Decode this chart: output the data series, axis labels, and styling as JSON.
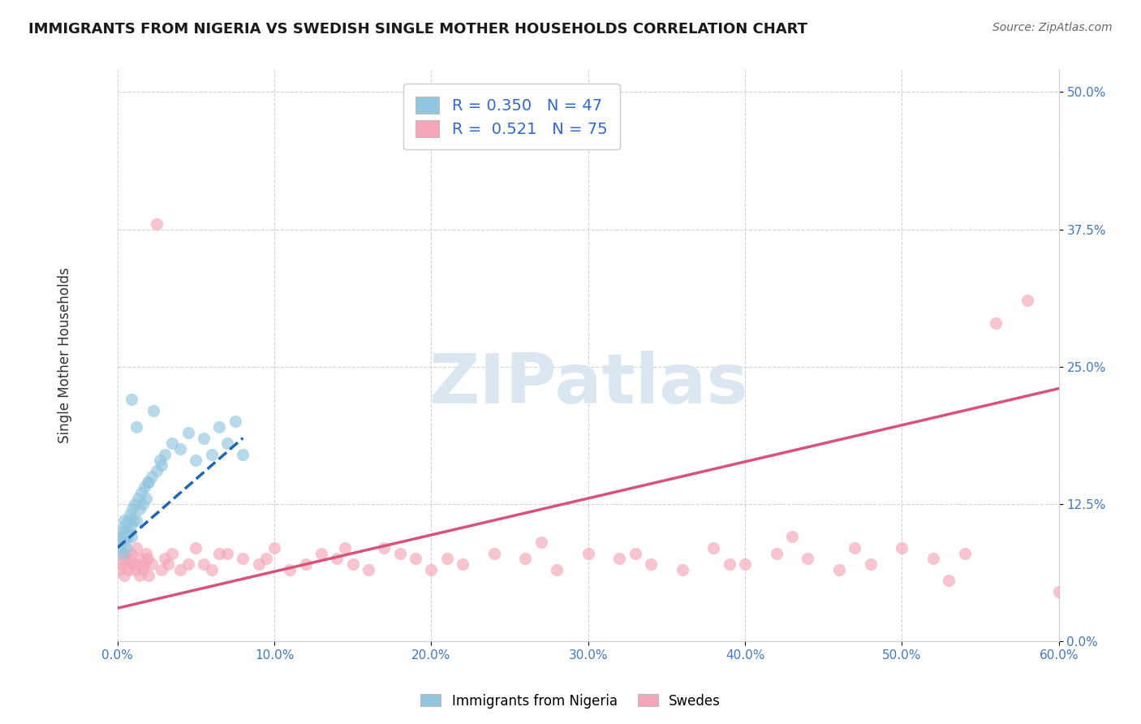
{
  "title": "IMMIGRANTS FROM NIGERIA VS SWEDISH SINGLE MOTHER HOUSEHOLDS CORRELATION CHART",
  "source": "Source: ZipAtlas.com",
  "xlim": [
    0.0,
    60.0
  ],
  "ylim": [
    0.0,
    52.0
  ],
  "ylabel": "Single Mother Households",
  "legend_label1": "Immigrants from Nigeria",
  "legend_label2": "Swedes",
  "legend_R1": "0.350",
  "legend_N1": "47",
  "legend_R2": "0.521",
  "legend_N2": "75",
  "color_blue": "#92c5de",
  "color_blue_fill": "#aed4e8",
  "color_pink": "#f4a6b8",
  "color_pink_fill": "#f9c6d0",
  "color_blue_line": "#2166ac",
  "color_pink_line": "#d6537a",
  "background_color": "#ffffff",
  "grid_color": "#cccccc",
  "watermark": "ZIPatlas",
  "watermark_color": "#dce6f0",
  "blue_scatter_x": [
    0.1,
    0.15,
    0.2,
    0.25,
    0.3,
    0.35,
    0.4,
    0.45,
    0.5,
    0.55,
    0.6,
    0.65,
    0.7,
    0.75,
    0.8,
    0.85,
    0.9,
    0.95,
    1.0,
    1.1,
    1.2,
    1.3,
    1.4,
    1.5,
    1.6,
    1.7,
    1.8,
    2.0,
    2.2,
    2.5,
    2.8,
    3.0,
    3.5,
    4.0,
    4.5,
    5.0,
    5.5,
    6.0,
    6.5,
    7.0,
    7.5,
    8.0,
    2.3,
    1.9,
    0.9,
    1.2,
    2.7
  ],
  "blue_scatter_y": [
    8.5,
    9.0,
    9.5,
    10.0,
    8.0,
    9.5,
    10.5,
    11.0,
    9.0,
    8.5,
    10.0,
    9.5,
    11.0,
    10.0,
    11.5,
    10.5,
    9.5,
    12.0,
    11.0,
    12.5,
    11.0,
    13.0,
    12.0,
    13.5,
    12.5,
    14.0,
    13.0,
    14.5,
    15.0,
    15.5,
    16.0,
    17.0,
    18.0,
    17.5,
    19.0,
    16.5,
    18.5,
    17.0,
    19.5,
    18.0,
    20.0,
    17.0,
    21.0,
    14.5,
    22.0,
    19.5,
    16.5
  ],
  "pink_scatter_x": [
    0.1,
    0.2,
    0.3,
    0.4,
    0.5,
    0.6,
    0.7,
    0.8,
    0.9,
    1.0,
    1.1,
    1.2,
    1.3,
    1.4,
    1.5,
    1.6,
    1.7,
    1.8,
    1.9,
    2.0,
    2.2,
    2.5,
    2.8,
    3.0,
    3.5,
    4.0,
    4.5,
    5.0,
    5.5,
    6.0,
    7.0,
    8.0,
    9.0,
    10.0,
    11.0,
    12.0,
    13.0,
    14.0,
    15.0,
    16.0,
    17.0,
    18.0,
    19.0,
    20.0,
    22.0,
    24.0,
    26.0,
    28.0,
    30.0,
    32.0,
    34.0,
    36.0,
    38.0,
    40.0,
    42.0,
    44.0,
    46.0,
    48.0,
    50.0,
    52.0,
    54.0,
    56.0,
    58.0,
    60.0,
    3.2,
    6.5,
    9.5,
    14.5,
    21.0,
    27.0,
    33.0,
    39.0,
    43.0,
    47.0,
    53.0
  ],
  "pink_scatter_y": [
    6.5,
    7.0,
    7.5,
    6.0,
    8.0,
    7.0,
    6.5,
    7.5,
    8.0,
    7.0,
    6.5,
    8.5,
    7.0,
    6.0,
    7.5,
    6.5,
    7.0,
    8.0,
    7.5,
    6.0,
    7.0,
    38.0,
    6.5,
    7.5,
    8.0,
    6.5,
    7.0,
    8.5,
    7.0,
    6.5,
    8.0,
    7.5,
    7.0,
    8.5,
    6.5,
    7.0,
    8.0,
    7.5,
    7.0,
    6.5,
    8.5,
    8.0,
    7.5,
    6.5,
    7.0,
    8.0,
    7.5,
    6.5,
    8.0,
    7.5,
    7.0,
    6.5,
    8.5,
    7.0,
    8.0,
    7.5,
    6.5,
    7.0,
    8.5,
    7.5,
    8.0,
    29.0,
    31.0,
    4.5,
    7.0,
    8.0,
    7.5,
    8.5,
    7.5,
    9.0,
    8.0,
    7.0,
    9.5,
    8.5,
    5.5
  ],
  "blue_trendline_x": [
    0.0,
    8.0
  ],
  "blue_trendline_y": [
    8.5,
    18.5
  ],
  "pink_trendline_x": [
    0.0,
    60.0
  ],
  "pink_trendline_y": [
    3.0,
    23.0
  ]
}
